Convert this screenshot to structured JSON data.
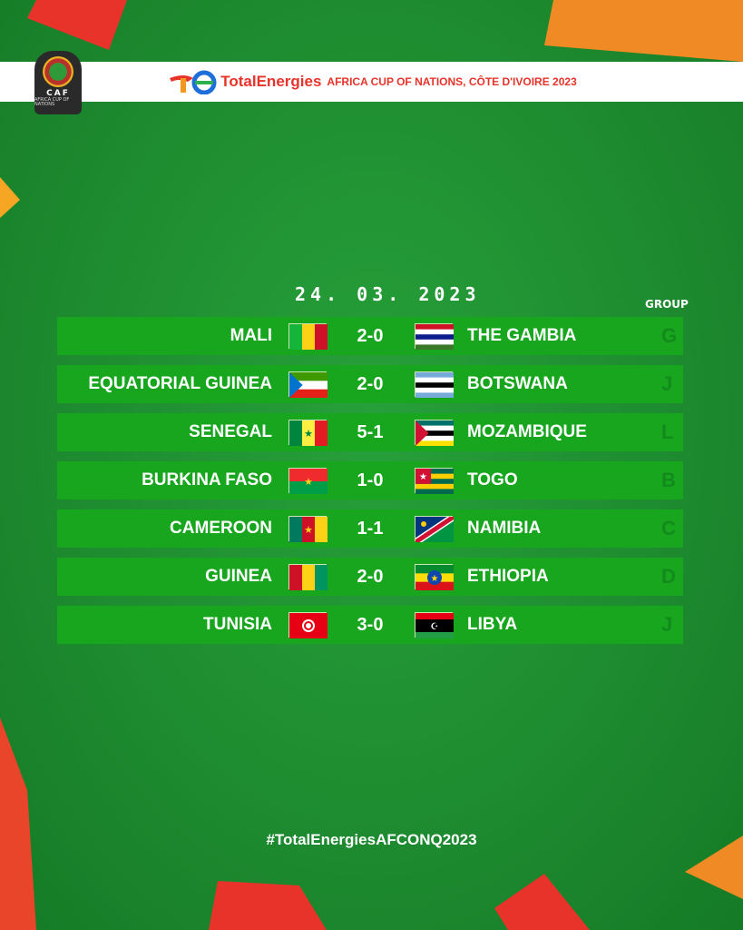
{
  "header": {
    "brand": "TotalEnergies",
    "title": "AFRICA CUP OF NATIONS, CÔTE D'IVOIRE 2023",
    "caf_logo": "CAF",
    "caf_sub": "AFRICA CUP OF NATIONS"
  },
  "date": "24. 03. 2023",
  "group_header": "GROUP",
  "matches": [
    {
      "home": "MALI",
      "score": "2-0",
      "away": "THE GAMBIA",
      "group": "G",
      "home_flag": {
        "dir": "v",
        "stripes": [
          "#14b53a",
          "#fcd116",
          "#ce1126"
        ]
      },
      "away_flag": {
        "dir": "h",
        "stripes": [
          "#ce1126",
          "#fff",
          "#0c1c8c",
          "#fff",
          "#3a7728"
        ]
      }
    },
    {
      "home": "EQUATORIAL GUINEA",
      "score": "2-0",
      "away": "BOTSWANA",
      "group": "J",
      "home_flag": {
        "dir": "h",
        "stripes": [
          "#3e9a00",
          "#fff",
          "#e32118"
        ],
        "tri": "#0073ce"
      },
      "away_flag": {
        "dir": "h",
        "stripes": [
          "#75aadb",
          "#fff",
          "#000",
          "#fff",
          "#75aadb"
        ]
      }
    },
    {
      "home": "SENEGAL",
      "score": "5-1",
      "away": "MOZAMBIQUE",
      "group": "L",
      "home_flag": {
        "dir": "v",
        "stripes": [
          "#00853f",
          "#fdef42",
          "#e31b23"
        ],
        "star": "#00853f"
      },
      "away_flag": {
        "dir": "h",
        "stripes": [
          "#007168",
          "#fff",
          "#000",
          "#fff",
          "#fce100"
        ],
        "tri": "#d21034"
      }
    },
    {
      "home": "BURKINA FASO",
      "score": "1-0",
      "away": "TOGO",
      "group": "B",
      "home_flag": {
        "dir": "h",
        "stripes": [
          "#ef2b2d",
          "#009e49"
        ],
        "star": "#fcd116"
      },
      "away_flag": {
        "dir": "h",
        "stripes": [
          "#006a4e",
          "#ffce00",
          "#006a4e",
          "#ffce00",
          "#006a4e"
        ],
        "canton": "#d21034"
      }
    },
    {
      "home": "CAMEROON",
      "score": "1-1",
      "away": "NAMIBIA",
      "group": "C",
      "home_flag": {
        "dir": "v",
        "stripes": [
          "#007a5e",
          "#ce1126",
          "#fcd116"
        ],
        "star": "#fcd116"
      },
      "away_flag": {
        "dir": "diag",
        "stripes": [
          "#003580",
          "#d21034",
          "#009543"
        ]
      }
    },
    {
      "home": "GUINEA",
      "score": "2-0",
      "away": "ETHIOPIA",
      "group": "D",
      "home_flag": {
        "dir": "v",
        "stripes": [
          "#ce1126",
          "#fcd116",
          "#009460"
        ]
      },
      "away_flag": {
        "dir": "h",
        "stripes": [
          "#078930",
          "#fcdd09",
          "#da121a"
        ],
        "disc": "#0f47af"
      }
    },
    {
      "home": "TUNISIA",
      "score": "3-0",
      "away": "LIBYA",
      "group": "J",
      "home_flag": {
        "dir": "h",
        "stripes": [
          "#e70013"
        ],
        "disc": "#fff"
      },
      "away_flag": {
        "dir": "h",
        "stripes": [
          "#e70013",
          "#000",
          "#000",
          "#239e46"
        ]
      }
    }
  ],
  "hashtag": "#TotalEnergiesAFCONQ2023"
}
